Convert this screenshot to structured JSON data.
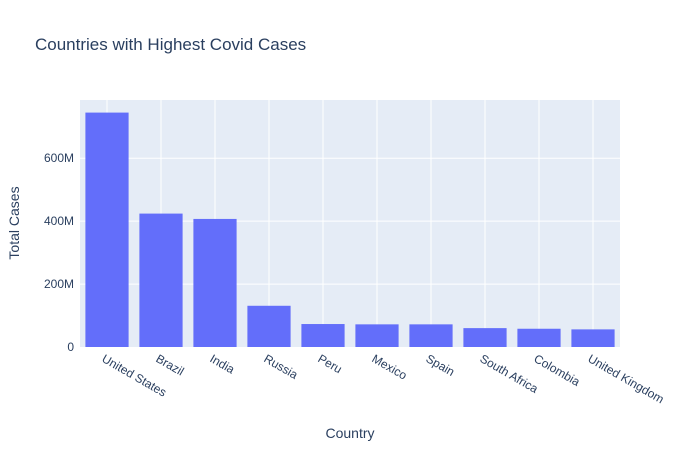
{
  "chart_data": {
    "type": "bar",
    "title": "Countries with Highest Covid Cases",
    "xlabel": "Country",
    "ylabel": "Total Cases",
    "categories": [
      "United States",
      "Brazil",
      "India",
      "Russia",
      "Peru",
      "Mexico",
      "Spain",
      "South Africa",
      "Colombia",
      "United Kingdom"
    ],
    "values": [
      745000000,
      424000000,
      407000000,
      131000000,
      73000000,
      72000000,
      72000000,
      60000000,
      58000000,
      56000000
    ],
    "ylim": [
      0,
      785000000
    ],
    "yticks": [
      0,
      200000000,
      400000000,
      600000000
    ],
    "ytick_labels": [
      "0",
      "200M",
      "400M",
      "600M"
    ],
    "grid": true,
    "colors": {
      "bar": "#636efa",
      "plot_bg": "#e5ecf6",
      "grid": "#ffffff",
      "text": "#2a3f5f"
    }
  }
}
